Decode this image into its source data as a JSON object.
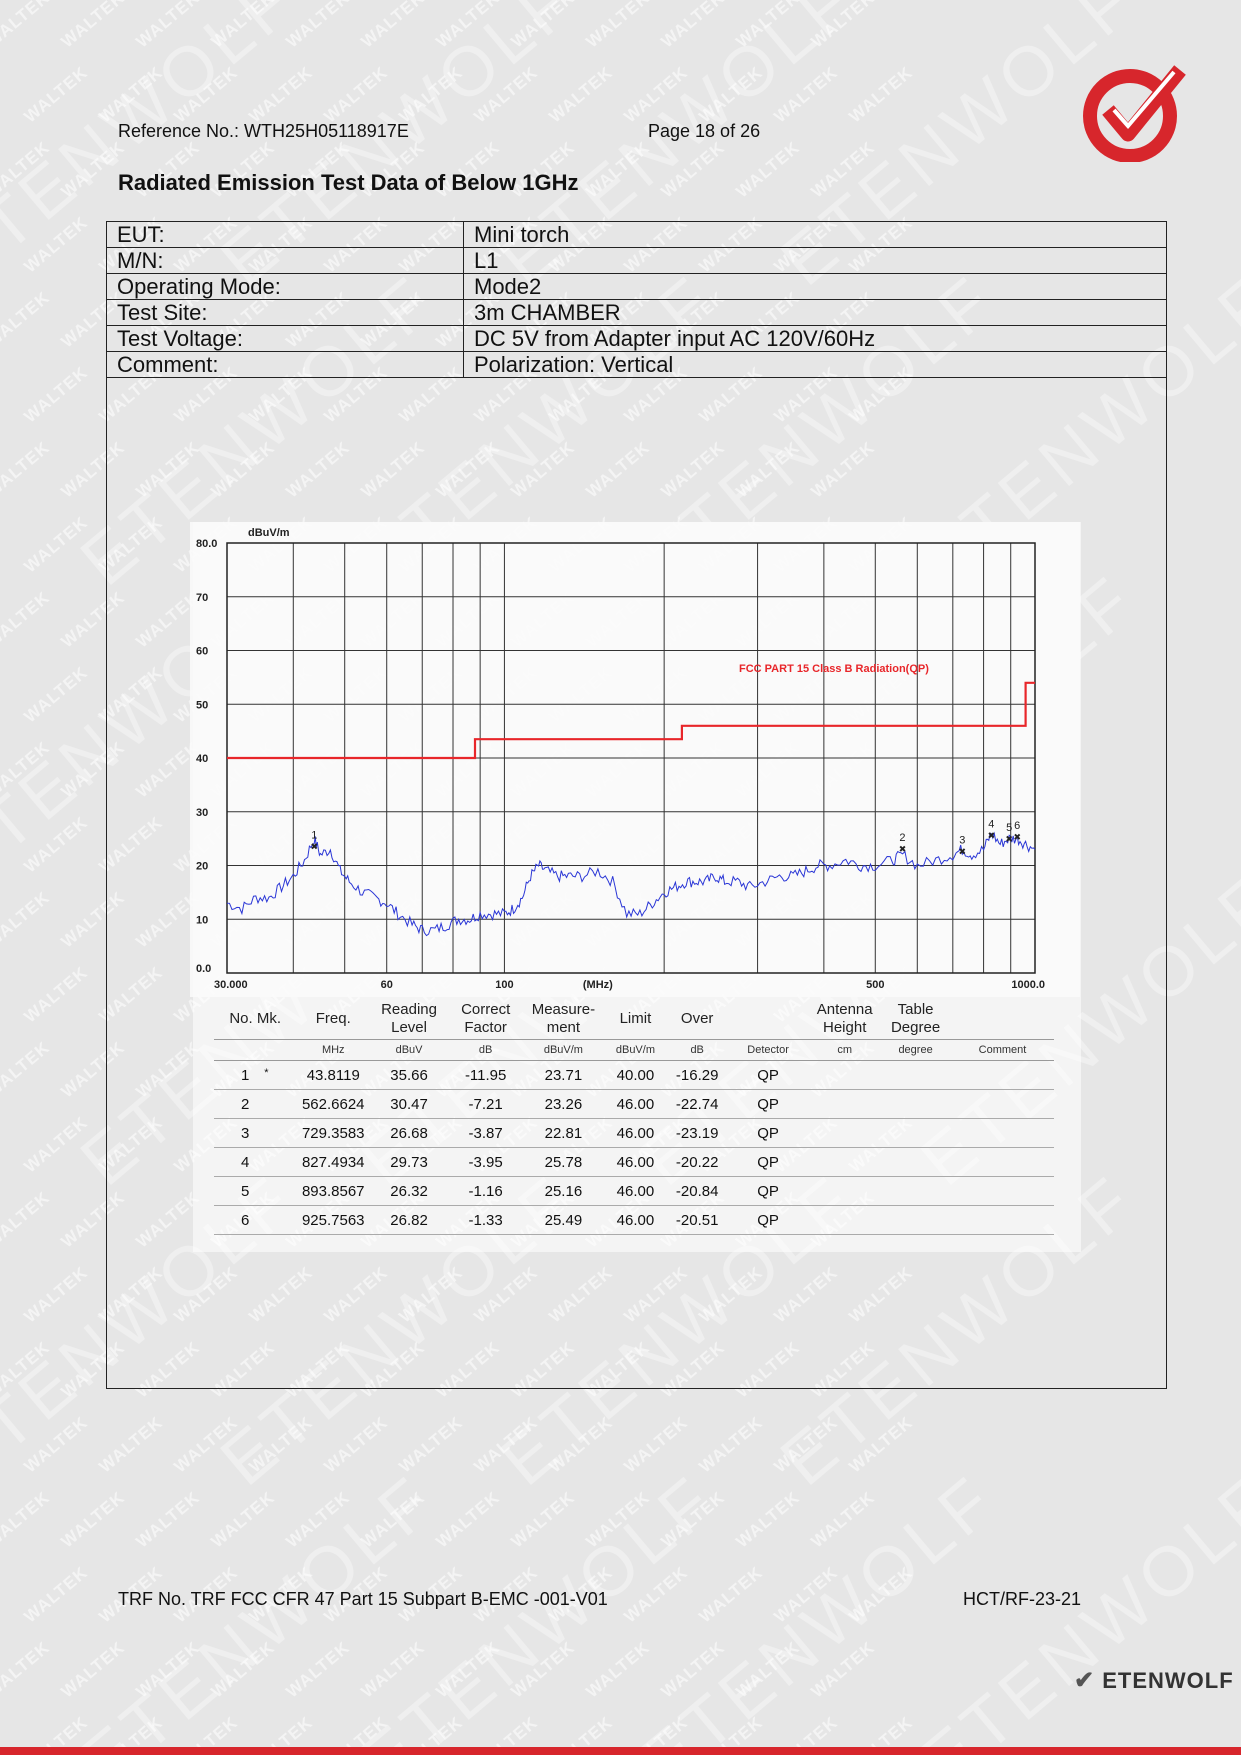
{
  "header": {
    "reference": "Reference No.: WTH25H05118917E",
    "page": "Page 18 of 26"
  },
  "title": "Radiated Emission Test Data of Below 1GHz",
  "info": [
    {
      "label": "EUT:",
      "value": "Mini torch"
    },
    {
      "label": "M/N:",
      "value": "L1"
    },
    {
      "label": "Operating Mode:",
      "value": "Mode2"
    },
    {
      "label": "Test Site:",
      "value": "3m CHAMBER"
    },
    {
      "label": "Test Voltage:",
      "value": "DC 5V from Adapter input AC 120V/60Hz"
    },
    {
      "label": "Comment:",
      "value": "Polarization: Vertical"
    }
  ],
  "chart_data": {
    "type": "line",
    "title": "",
    "xlabel": "(MHz)",
    "ylabel": "dBuV/m",
    "x_scale": "log",
    "xlim": [
      30,
      1000
    ],
    "ylim": [
      0,
      80
    ],
    "y_ticks": [
      "80.0",
      "70",
      "60",
      "50",
      "40",
      "30",
      "20",
      "10",
      "0.0"
    ],
    "x_tick_labels": [
      "30.000",
      "60",
      "100",
      "(MHz)",
      "500",
      "1000.0"
    ],
    "grid": true,
    "limit_label": "FCC PART 15 Class B Radiation(QP)",
    "limit_line": {
      "color": "#e8262a",
      "points": [
        [
          30,
          40
        ],
        [
          88,
          40
        ],
        [
          88,
          43.5
        ],
        [
          216,
          43.5
        ],
        [
          216,
          46
        ],
        [
          960,
          46
        ],
        [
          960,
          54
        ],
        [
          1000,
          54
        ]
      ]
    },
    "series": [
      {
        "color": "#2a36d6",
        "x": [
          30,
          32,
          34,
          36,
          38,
          40,
          42,
          43.8,
          45,
          47,
          49,
          51,
          54,
          57,
          60,
          63,
          67,
          70,
          74,
          78,
          82,
          86,
          90,
          95,
          100,
          104,
          108,
          112,
          116,
          120,
          126,
          132,
          140,
          150,
          160,
          170,
          180,
          190,
          200,
          210,
          220,
          230,
          240,
          250,
          260,
          275,
          290,
          310,
          330,
          350,
          370,
          390,
          410,
          440,
          470,
          500,
          540,
          562.7,
          600,
          650,
          700,
          729.4,
          760,
          800,
          827.5,
          860,
          893.9,
          925.8,
          960,
          1000
        ],
        "values": [
          13,
          12,
          14,
          14,
          16,
          18,
          21,
          25,
          22,
          23,
          19,
          17,
          15,
          14,
          13,
          11,
          9,
          8,
          8,
          9,
          10,
          10,
          11,
          11,
          11,
          12,
          14,
          18,
          20,
          19,
          18,
          18,
          18,
          19,
          17,
          11,
          11,
          13,
          15,
          16,
          17,
          17,
          17,
          18,
          17,
          17,
          16,
          17,
          18,
          18,
          19,
          20,
          20,
          21,
          20,
          20,
          21,
          22,
          20,
          21,
          22,
          23,
          22,
          23,
          26,
          24,
          25,
          25,
          24,
          23
        ]
      }
    ],
    "markers": [
      {
        "label": "1",
        "x": 43.8119,
        "y": 23.71
      },
      {
        "label": "2",
        "x": 562.6624,
        "y": 23.26
      },
      {
        "label": "3",
        "x": 729.3583,
        "y": 22.81
      },
      {
        "label": "4",
        "x": 827.4934,
        "y": 25.78
      },
      {
        "label": "5",
        "x": 893.8567,
        "y": 25.16
      },
      {
        "label": "6",
        "x": 925.7563,
        "y": 25.49
      }
    ]
  },
  "results": {
    "headers": [
      "No. Mk.",
      "Freq.",
      "Reading Level",
      "Correct Factor",
      "Measure- ment",
      "Limit",
      "Over",
      "",
      "Antenna Height",
      "Table Degree",
      ""
    ],
    "units": [
      "",
      "MHz",
      "dBuV",
      "dB",
      "dBuV/m",
      "dBuV/m",
      "dB",
      "Detector",
      "cm",
      "degree",
      "Comment"
    ],
    "rows": [
      {
        "no": "1",
        "mk": "*",
        "freq": "43.8119",
        "reading": "35.66",
        "factor": "-11.95",
        "measure": "23.71",
        "limit": "40.00",
        "over": "-16.29",
        "detector": "QP"
      },
      {
        "no": "2",
        "mk": "",
        "freq": "562.6624",
        "reading": "30.47",
        "factor": "-7.21",
        "measure": "23.26",
        "limit": "46.00",
        "over": "-22.74",
        "detector": "QP"
      },
      {
        "no": "3",
        "mk": "",
        "freq": "729.3583",
        "reading": "26.68",
        "factor": "-3.87",
        "measure": "22.81",
        "limit": "46.00",
        "over": "-23.19",
        "detector": "QP"
      },
      {
        "no": "4",
        "mk": "",
        "freq": "827.4934",
        "reading": "29.73",
        "factor": "-3.95",
        "measure": "25.78",
        "limit": "46.00",
        "over": "-20.22",
        "detector": "QP"
      },
      {
        "no": "5",
        "mk": "",
        "freq": "893.8567",
        "reading": "26.32",
        "factor": "-1.16",
        "measure": "25.16",
        "limit": "46.00",
        "over": "-20.84",
        "detector": "QP"
      },
      {
        "no": "6",
        "mk": "",
        "freq": "925.7563",
        "reading": "26.82",
        "factor": "-1.33",
        "measure": "25.49",
        "limit": "46.00",
        "over": "-20.51",
        "detector": "QP"
      }
    ]
  },
  "footer": {
    "trf": "TRF No. TRF FCC CFR 47 Part 15 Subpart B-EMC -001-V01",
    "code": "HCT/RF-23-21"
  },
  "brand": "ETENWOLF",
  "watermarks": {
    "small": "WALTEK",
    "large": "ETENWOLF"
  },
  "colors": {
    "accent_red": "#d7262c",
    "limit_red": "#e8262a",
    "trace_blue": "#2a36d6"
  }
}
